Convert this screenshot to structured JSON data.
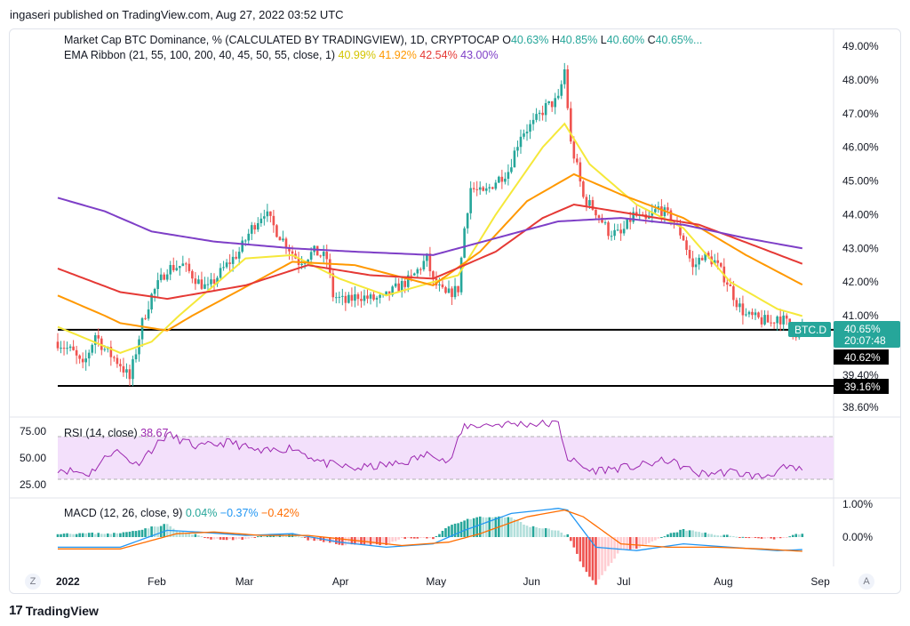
{
  "header": {
    "published": "ingaseri published on TradingView.com, Aug 27, 2022 03:52 UTC"
  },
  "legend": {
    "main_title": "Market Cap BTC Dominance, % (CALCULATED BY TRADINGVIEW), 1D, CRYPTOCAP",
    "ohlc": [
      {
        "k": "O",
        "v": "40.63%"
      },
      {
        "k": "H",
        "v": "40.85%"
      },
      {
        "k": "L",
        "v": "40.60%"
      },
      {
        "k": "C",
        "v": "40.65%..."
      }
    ],
    "ema_title": "EMA Ribbon (21, 55, 100, 200, 40, 45, 50, 55, close, 1)",
    "ema_values": [
      "40.99%",
      "41.92%",
      "42.54%",
      "43.00%"
    ],
    "rsi_title": "RSI (14, close)",
    "rsi_value": "38.67",
    "macd_title": "MACD (12, 26, close, 9)",
    "macd_values": [
      "0.04%",
      "−0.37%",
      "−0.42%"
    ]
  },
  "colors": {
    "up": "#26a69a",
    "down": "#ef5350",
    "ema21": "#f5e83a",
    "ema55": "#ff9800",
    "ema100": "#e53935",
    "ema200": "#7e3fc7",
    "rsi": "#9c27b0",
    "rsi_band": "#f3e0fb",
    "macd": "#2196f3",
    "signal": "#ff6d00",
    "label_bg": "#26a69a",
    "label_black": "#000000"
  },
  "price_axis": {
    "ticks": [
      "49.00%",
      "48.00%",
      "47.00%",
      "46.00%",
      "45.00%",
      "44.00%",
      "43.00%",
      "42.00%",
      "41.00%",
      "39.40%",
      "38.60%"
    ],
    "tick_values": [
      49,
      48,
      47,
      46,
      45,
      44,
      43,
      42,
      41,
      39.4,
      38.6
    ]
  },
  "labels": {
    "symbol": "BTC.D",
    "last_price": "40.65%",
    "countdown": "20:07:48",
    "level1": "40.62%",
    "level2": "39.16%"
  },
  "rsi_axis": {
    "ticks": [
      "75.00",
      "50.00",
      "25.00"
    ]
  },
  "macd_axis": {
    "ticks": [
      "1.00%",
      "0.00%"
    ]
  },
  "time_axis": {
    "labels": [
      "2022",
      "Feb",
      "Mar",
      "Apr",
      "May",
      "Jun",
      "Jul",
      "Aug",
      "Sep"
    ]
  },
  "footer": {
    "brand": "TradingView"
  },
  "corners": {
    "left": "Z",
    "right": "A"
  },
  "chart_data": {
    "type": "candlestick",
    "x_start": "2022-01-01",
    "x_end": "2022-08-27",
    "ylim": [
      38.3,
      49.4
    ],
    "horizontal_levels": [
      40.62,
      39.16
    ],
    "close_path": [
      [
        0,
        40.3
      ],
      [
        5,
        40.0
      ],
      [
        8,
        39.6
      ],
      [
        12,
        40.5
      ],
      [
        15,
        40.1
      ],
      [
        20,
        39.7
      ],
      [
        23,
        39.3
      ],
      [
        27,
        40.8
      ],
      [
        30,
        41.6
      ],
      [
        35,
        42.4
      ],
      [
        40,
        42.5
      ],
      [
        45,
        42.0
      ],
      [
        48,
        41.8
      ],
      [
        53,
        42.4
      ],
      [
        58,
        42.9
      ],
      [
        62,
        43.6
      ],
      [
        66,
        44.1
      ],
      [
        70,
        43.5
      ],
      [
        74,
        43.0
      ],
      [
        77,
        42.6
      ],
      [
        82,
        42.9
      ],
      [
        86,
        42.7
      ],
      [
        88,
        41.6
      ],
      [
        92,
        41.4
      ],
      [
        96,
        41.6
      ],
      [
        100,
        41.5
      ],
      [
        104,
        41.5
      ],
      [
        108,
        41.8
      ],
      [
        113,
        42.1
      ],
      [
        118,
        42.7
      ],
      [
        120,
        42.0
      ],
      [
        124,
        41.6
      ],
      [
        128,
        41.8
      ],
      [
        130,
        43.6
      ],
      [
        132,
        44.8
      ],
      [
        136,
        44.6
      ],
      [
        140,
        45.0
      ],
      [
        144,
        45.3
      ],
      [
        148,
        46.4
      ],
      [
        152,
        46.7
      ],
      [
        156,
        47.2
      ],
      [
        160,
        47.4
      ],
      [
        162,
        48.3
      ],
      [
        164,
        46.1
      ],
      [
        166,
        45.4
      ],
      [
        168,
        44.5
      ],
      [
        172,
        44.1
      ],
      [
        176,
        43.5
      ],
      [
        180,
        43.4
      ],
      [
        184,
        44.0
      ],
      [
        188,
        43.8
      ],
      [
        192,
        44.2
      ],
      [
        196,
        43.9
      ],
      [
        200,
        43.3
      ],
      [
        203,
        42.4
      ],
      [
        206,
        42.8
      ],
      [
        210,
        42.6
      ],
      [
        214,
        42.0
      ],
      [
        217,
        41.4
      ],
      [
        220,
        41.0
      ],
      [
        224,
        40.9
      ],
      [
        228,
        40.8
      ],
      [
        230,
        41.0
      ],
      [
        233,
        40.8
      ],
      [
        236,
        40.55
      ],
      [
        238,
        40.65
      ]
    ],
    "ema": [
      {
        "name": "21",
        "values": [
          [
            0,
            40.7
          ],
          [
            20,
            40.0
          ],
          [
            30,
            40.3
          ],
          [
            45,
            41.5
          ],
          [
            60,
            42.7
          ],
          [
            75,
            42.8
          ],
          [
            90,
            42.1
          ],
          [
            105,
            41.6
          ],
          [
            120,
            42.0
          ],
          [
            128,
            42.2
          ],
          [
            140,
            44.0
          ],
          [
            155,
            46.0
          ],
          [
            162,
            46.7
          ],
          [
            170,
            45.5
          ],
          [
            185,
            44.3
          ],
          [
            200,
            43.6
          ],
          [
            215,
            42.0
          ],
          [
            230,
            41.2
          ],
          [
            238,
            40.99
          ]
        ]
      },
      {
        "name": "55",
        "values": [
          [
            0,
            41.6
          ],
          [
            20,
            40.8
          ],
          [
            35,
            40.6
          ],
          [
            55,
            41.6
          ],
          [
            75,
            42.6
          ],
          [
            95,
            42.5
          ],
          [
            120,
            41.9
          ],
          [
            135,
            42.9
          ],
          [
            150,
            44.4
          ],
          [
            165,
            45.2
          ],
          [
            180,
            44.6
          ],
          [
            200,
            43.9
          ],
          [
            220,
            42.8
          ],
          [
            238,
            41.92
          ]
        ]
      },
      {
        "name": "100",
        "values": [
          [
            0,
            42.4
          ],
          [
            20,
            41.7
          ],
          [
            35,
            41.5
          ],
          [
            60,
            41.9
          ],
          [
            80,
            42.5
          ],
          [
            100,
            42.2
          ],
          [
            120,
            42.1
          ],
          [
            140,
            42.9
          ],
          [
            155,
            43.9
          ],
          [
            165,
            44.3
          ],
          [
            185,
            44.0
          ],
          [
            205,
            43.7
          ],
          [
            225,
            43.0
          ],
          [
            238,
            42.54
          ]
        ]
      },
      {
        "name": "200",
        "values": [
          [
            0,
            44.5
          ],
          [
            15,
            44.1
          ],
          [
            30,
            43.5
          ],
          [
            50,
            43.2
          ],
          [
            75,
            43.0
          ],
          [
            95,
            42.9
          ],
          [
            120,
            42.8
          ],
          [
            140,
            43.3
          ],
          [
            160,
            43.8
          ],
          [
            180,
            43.9
          ],
          [
            200,
            43.7
          ],
          [
            220,
            43.3
          ],
          [
            238,
            43.0
          ]
        ]
      }
    ],
    "rsi": [
      [
        0,
        40
      ],
      [
        10,
        35
      ],
      [
        18,
        58
      ],
      [
        25,
        44
      ],
      [
        35,
        72
      ],
      [
        45,
        60
      ],
      [
        55,
        65
      ],
      [
        65,
        55
      ],
      [
        75,
        60
      ],
      [
        85,
        45
      ],
      [
        95,
        40
      ],
      [
        110,
        45
      ],
      [
        120,
        55
      ],
      [
        125,
        45
      ],
      [
        130,
        80
      ],
      [
        145,
        82
      ],
      [
        160,
        82
      ],
      [
        163,
        50
      ],
      [
        170,
        38
      ],
      [
        185,
        42
      ],
      [
        195,
        48
      ],
      [
        205,
        35
      ],
      [
        215,
        37
      ],
      [
        225,
        32
      ],
      [
        232,
        40
      ],
      [
        238,
        38.67
      ]
    ],
    "macd": [
      [
        0,
        -0.3
      ],
      [
        20,
        -0.3
      ],
      [
        35,
        0.2
      ],
      [
        45,
        0.15
      ],
      [
        60,
        0.05
      ],
      [
        75,
        0.1
      ],
      [
        90,
        -0.15
      ],
      [
        105,
        -0.3
      ],
      [
        120,
        -0.2
      ],
      [
        130,
        0.2
      ],
      [
        145,
        0.7
      ],
      [
        160,
        0.85
      ],
      [
        163,
        0.8
      ],
      [
        172,
        -0.3
      ],
      [
        185,
        -0.4
      ],
      [
        200,
        -0.2
      ],
      [
        215,
        -0.3
      ],
      [
        230,
        -0.4
      ],
      [
        238,
        -0.37
      ]
    ],
    "signal": [
      [
        0,
        -0.35
      ],
      [
        20,
        -0.35
      ],
      [
        38,
        0.1
      ],
      [
        50,
        0.15
      ],
      [
        65,
        0.05
      ],
      [
        80,
        0.05
      ],
      [
        95,
        -0.1
      ],
      [
        110,
        -0.25
      ],
      [
        125,
        -0.15
      ],
      [
        135,
        0.1
      ],
      [
        150,
        0.6
      ],
      [
        162,
        0.8
      ],
      [
        168,
        0.6
      ],
      [
        180,
        -0.2
      ],
      [
        195,
        -0.3
      ],
      [
        210,
        -0.3
      ],
      [
        225,
        -0.35
      ],
      [
        238,
        -0.42
      ]
    ]
  }
}
